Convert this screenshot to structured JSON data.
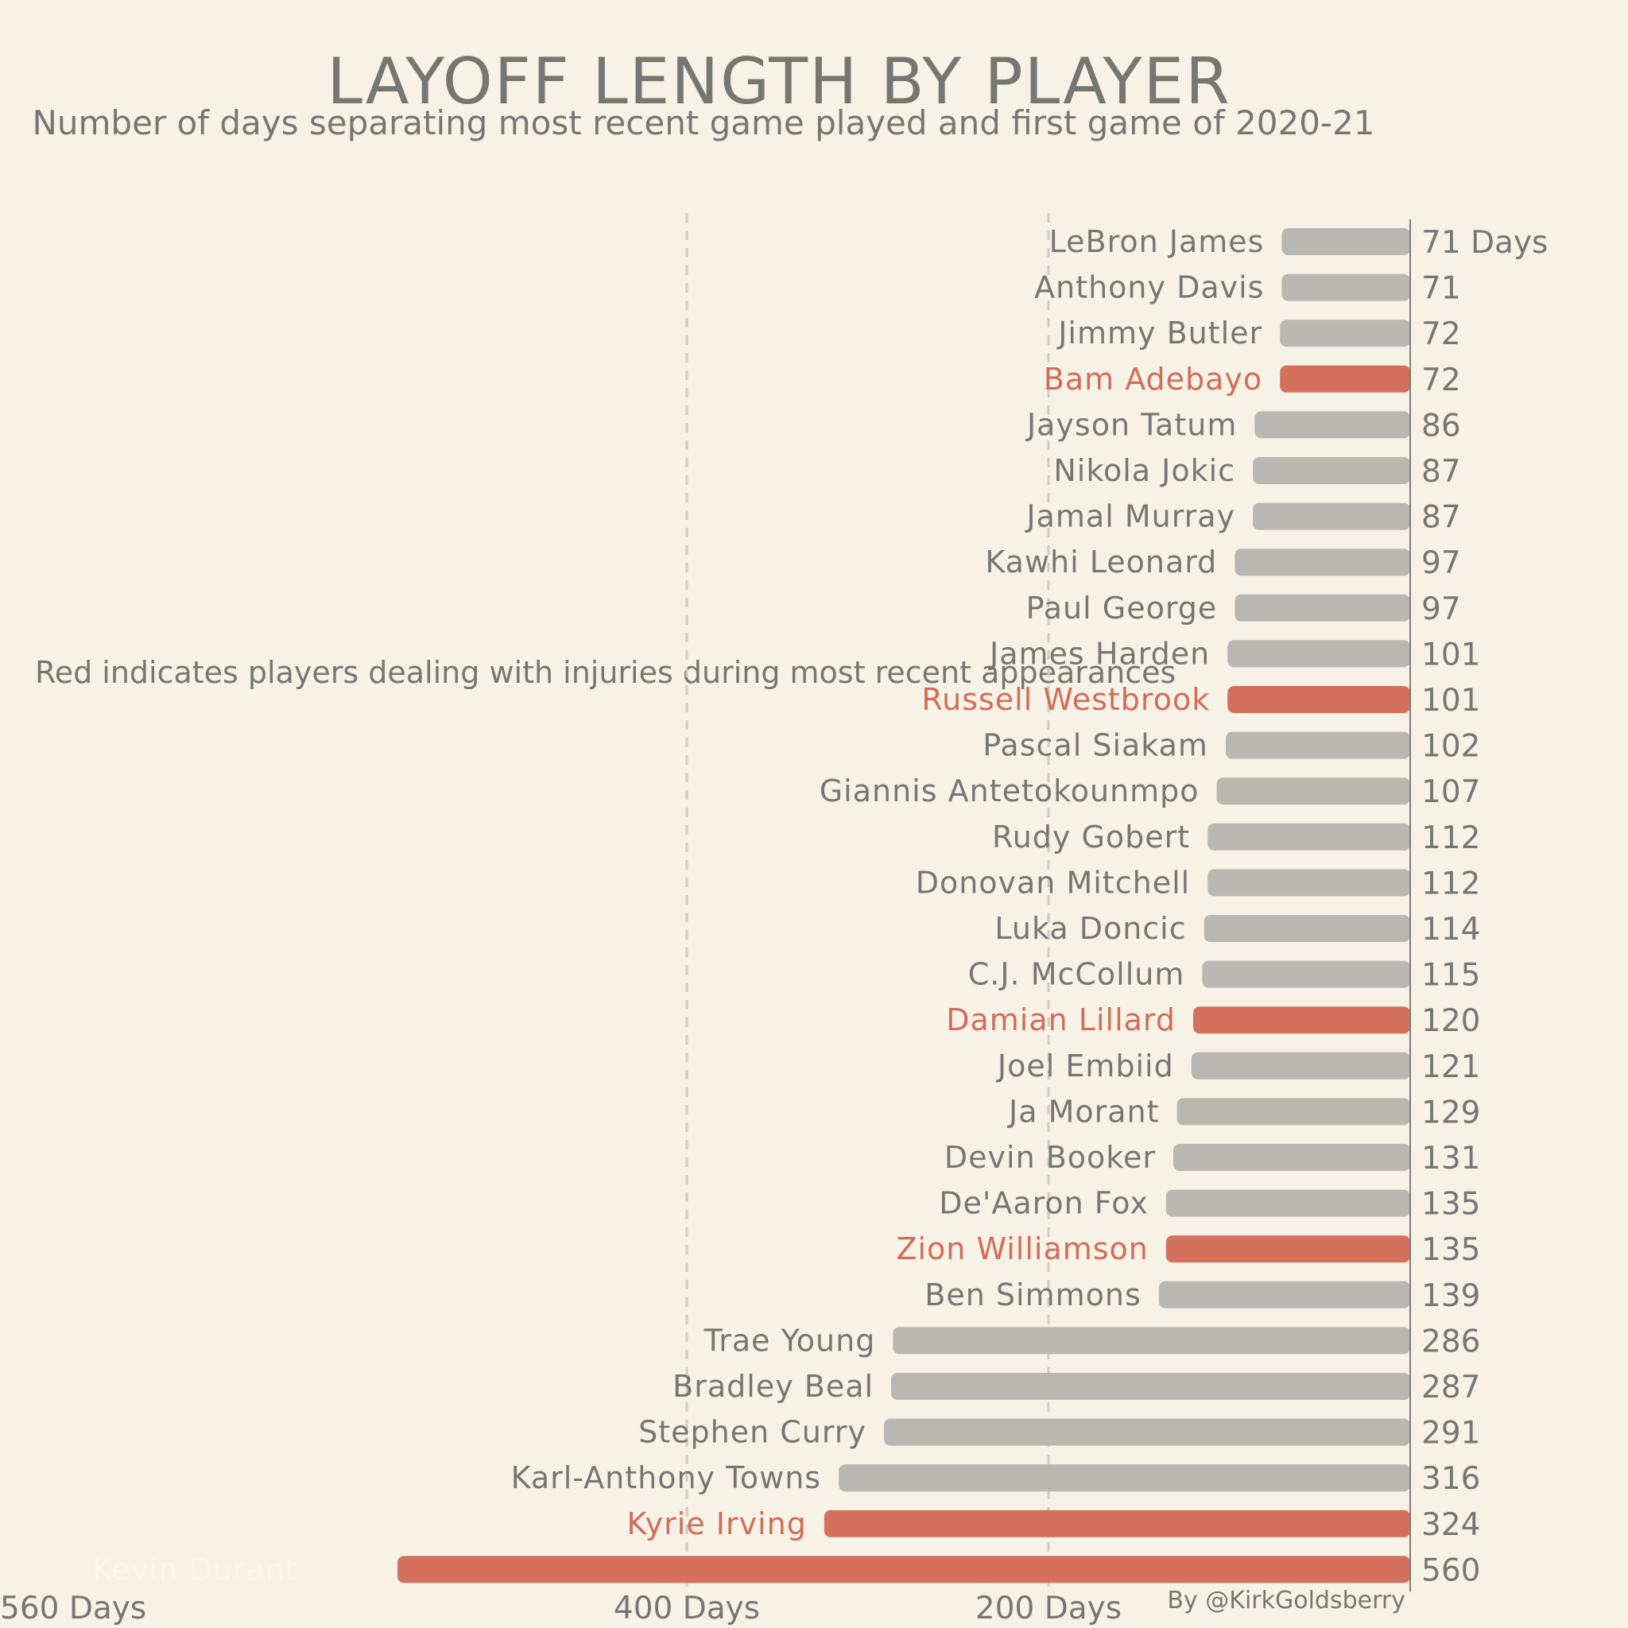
{
  "title": "LAYOFF LENGTH BY PLAYER",
  "subtitle": "Number of days separating most recent game played and first game of 2020-21",
  "note": "Red indicates players dealing with injuries during most recent appearances",
  "credit": "By @KirkGoldsberry",
  "colors": {
    "background": "#f7f2e6",
    "bar": "#b9b7b1",
    "injured": "#d4705c",
    "text": "#777772",
    "injured_text": "#d16d58"
  },
  "chart_data": {
    "type": "bar",
    "orientation": "horizontal",
    "direction": "bars extend leftward from a vertical baseline",
    "title": "LAYOFF LENGTH BY PLAYER",
    "subtitle": "Number of days separating most recent game played and first game of 2020-21",
    "unit_label": "Days",
    "xlim": [
      0,
      560
    ],
    "x_ticks": [
      {
        "value": 560,
        "label": "560 Days"
      },
      {
        "value": 400,
        "label": "400 Days"
      },
      {
        "value": 200,
        "label": "200 Days"
      }
    ],
    "gridlines": [
      400,
      200
    ],
    "categories": [
      "LeBron James",
      "Anthony Davis",
      "Jimmy Butler",
      "Bam Adebayo",
      "Jayson Tatum",
      "Nikola Jokic",
      "Jamal Murray",
      "Kawhi Leonard",
      "Paul George",
      "James Harden",
      "Russell Westbrook",
      "Pascal Siakam",
      "Giannis Antetokounmpo",
      "Rudy Gobert",
      "Donovan Mitchell",
      "Luka Doncic",
      "C.J. McCollum",
      "Damian Lillard",
      "Joel Embiid",
      "Ja Morant",
      "Devin Booker",
      "De'Aaron Fox",
      "Zion Williamson",
      "Ben Simmons",
      "Trae Young",
      "Bradley Beal",
      "Stephen Curry",
      "Karl-Anthony Towns",
      "Kyrie Irving",
      "Kevin Durant"
    ],
    "values": [
      71,
      71,
      72,
      72,
      86,
      87,
      87,
      97,
      97,
      101,
      101,
      102,
      107,
      112,
      112,
      114,
      115,
      120,
      121,
      129,
      131,
      135,
      135,
      139,
      286,
      287,
      291,
      316,
      324,
      560
    ],
    "injured": [
      false,
      false,
      false,
      true,
      false,
      false,
      false,
      false,
      false,
      false,
      true,
      false,
      false,
      false,
      false,
      false,
      false,
      true,
      false,
      false,
      false,
      false,
      true,
      false,
      false,
      false,
      false,
      false,
      true,
      true
    ],
    "first_value_label": "71 Days"
  }
}
